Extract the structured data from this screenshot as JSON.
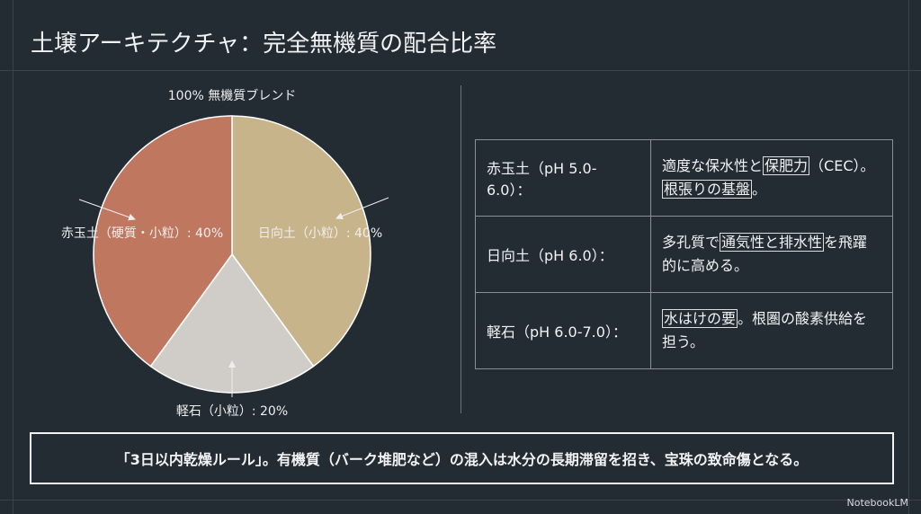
{
  "header": {
    "title": "土壌アーキテクチャ：完全無機質の配合比率"
  },
  "chart_data": {
    "type": "pie",
    "title": "100% 無機質ブレンド",
    "categories": [
      "日向土（小粒）: 40%",
      "軽石（小粒）: 20%",
      "赤玉土（硬質・小粒）: 40%"
    ],
    "values": [
      40,
      20,
      40
    ],
    "colors": [
      "#c8b48a",
      "#d0cdc8",
      "#bf7760"
    ]
  },
  "table": {
    "rows": [
      {
        "label": "赤玉土（pH 5.0-6.0）：",
        "segments": [
          {
            "text": "適度な保水性と",
            "boxed": false
          },
          {
            "text": "保肥力",
            "boxed": true
          },
          {
            "text": "（CEC）。",
            "boxed": false
          },
          {
            "text": "根張りの基盤",
            "boxed": true
          },
          {
            "text": "。",
            "boxed": false
          }
        ]
      },
      {
        "label": "日向土（pH 6.0）：",
        "segments": [
          {
            "text": "多孔質で",
            "boxed": false
          },
          {
            "text": "通気性と排水性",
            "boxed": true
          },
          {
            "text": "を飛躍的に高める。",
            "boxed": false
          }
        ]
      },
      {
        "label": "軽石（pH 6.0-7.0）：",
        "segments": [
          {
            "text": "水はけの要",
            "boxed": true
          },
          {
            "text": "。根圏の酸素供給を担う。",
            "boxed": false
          }
        ]
      }
    ]
  },
  "footer": {
    "text": "「3日以内乾燥ルール」。有機質（バーク堆肥など）の混入は水分の長期滞留を招き、宝珠の致命傷となる。"
  },
  "brand": "NotebookLM"
}
